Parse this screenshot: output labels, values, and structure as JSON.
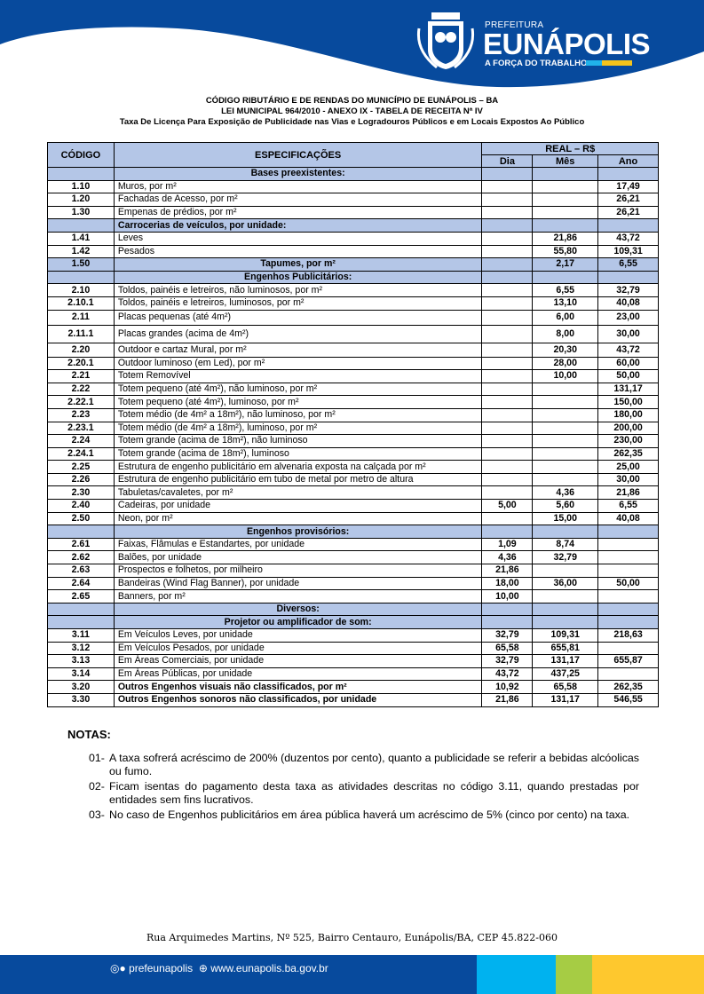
{
  "header": {
    "pref": "PREFEITURA",
    "city": "EUNÁPOLIS",
    "slogan": "A FORÇA DO TRABALHO",
    "colors": {
      "blue": "#074a9d",
      "cyan": "#00b2ef",
      "green": "#a6cc44",
      "yellow": "#fec82e"
    }
  },
  "titles": [
    "CÓDIGO RIBUTÁRIO E DE RENDAS DO MUNICÍPIO DE EUNÁPOLIS – BA",
    "LEI MUNICIPAL 964/2010 - ANEXO IX - TABELA DE RECEITA Nª IV",
    "Taxa De Licença Para Exposição de Publicidade nas Vias e Logradouros Públicos e em Locais Expostos Ao Público"
  ],
  "table": {
    "headers": {
      "code": "CÓDIGO",
      "spec": "ESPECIFICAÇÕES",
      "real": "REAL – R$",
      "dia": "Dia",
      "mes": "Mês",
      "ano": "Ano"
    },
    "rows": [
      {
        "t": "sec",
        "spec": "Bases preexistentes:"
      },
      {
        "code": "1.10",
        "spec": "Muros, por m²",
        "ano": "17,49"
      },
      {
        "code": "1.20",
        "spec": "Fachadas de Acesso, por m²",
        "ano": "26,21"
      },
      {
        "code": "1.30",
        "spec": "Empenas de prédios, por m²",
        "ano": "26,21"
      },
      {
        "t": "secl",
        "spec": "Carrocerias de veículos, por unidade:"
      },
      {
        "code": "1.41",
        "spec": "Leves",
        "mes": "21,86",
        "ano": "43,72"
      },
      {
        "code": "1.42",
        "spec": "Pesados",
        "mes": "55,80",
        "ano": "109,31"
      },
      {
        "t": "sec",
        "code": "1.50",
        "spec": "Tapumes, por m²",
        "mes": "2,17",
        "ano": "6,55"
      },
      {
        "t": "sec",
        "spec": "Engenhos Publicitários:"
      },
      {
        "code": "2.10",
        "spec": "Toldos, painéis e letreiros, não luminosos, por m²",
        "mes": "6,55",
        "ano": "32,79"
      },
      {
        "code": "2.10.1",
        "spec": "Toldos, painéis e letreiros, luminosos, por m²",
        "mes": "13,10",
        "ano": "40,08"
      },
      {
        "code": "2.11",
        "spec": "Placas pequenas (até 4m²)",
        "mes": "6,00",
        "ano": "23,00",
        "h": 17
      },
      {
        "code": "2.11.1",
        "spec": "Placas grandes (acima de 4m²)",
        "mes": "8,00",
        "ano": "30,00",
        "h": 20
      },
      {
        "code": "2.20",
        "spec": "Outdoor e cartaz Mural, por m²",
        "mes": "20,30",
        "ano": "43,72",
        "h": 16
      },
      {
        "code": "2.20.1",
        "spec": "Outdoor luminoso (em Led), por m²",
        "mes": "28,00",
        "ano": "60,00"
      },
      {
        "code": "2.21",
        "spec": "Totem Removível",
        "mes": "10,00",
        "ano": "50,00"
      },
      {
        "code": "2.22",
        "spec": "Totem pequeno (até 4m²), não luminoso, por m²",
        "ano": "131,17"
      },
      {
        "code": "2.22.1",
        "spec": "Totem pequeno (até 4m²), luminoso, por m²",
        "ano": "150,00"
      },
      {
        "code": "2.23",
        "spec": "Totem médio (de 4m² a 18m²), não luminoso, por m²",
        "ano": "180,00"
      },
      {
        "code": "2.23.1",
        "spec": "Totem médio (de 4m² a 18m²), luminoso, por m²",
        "ano": "200,00"
      },
      {
        "code": "2.24",
        "spec": "Totem grande (acima de 18m²), não luminoso",
        "ano": "230,00"
      },
      {
        "code": "2.24.1",
        "spec": "Totem grande (acima de 18m²), luminoso",
        "ano": "262,35"
      },
      {
        "code": "2.25",
        "spec": "Estrutura de engenho publicitário em alvenaria exposta na calçada por m²",
        "ano": "25,00"
      },
      {
        "code": "2.26",
        "spec": "Estrutura de engenho publicitário em tubo de metal por metro de altura",
        "ano": "30,00"
      },
      {
        "code": "2.30",
        "spec": "Tabuletas/cavaletes, por m²",
        "mes": "4,36",
        "ano": "21,86"
      },
      {
        "code": "2.40",
        "spec": "Cadeiras, por unidade",
        "dia": "5,00",
        "mes": "5,60",
        "ano": "6,55"
      },
      {
        "code": "2.50",
        "spec": "Neon, por m²",
        "mes": "15,00",
        "ano": "40,08"
      },
      {
        "t": "sec",
        "spec": "Engenhos provisórios:"
      },
      {
        "code": "2.61",
        "spec": "Faixas, Flâmulas e Estandartes, por unidade",
        "dia": "1,09",
        "mes": "8,74"
      },
      {
        "code": "2.62",
        "spec": "Balões, por unidade",
        "dia": "4,36",
        "mes": "32,79"
      },
      {
        "code": "2.63",
        "spec": "Prospectos e folhetos, por milheiro",
        "dia": "21,86"
      },
      {
        "code": "2.64",
        "spec": "Bandeiras (Wind Flag Banner), por unidade",
        "dia": "18,00",
        "mes": "36,00",
        "ano": "50,00"
      },
      {
        "code": "2.65",
        "spec": "Banners, por m²",
        "dia": "10,00"
      },
      {
        "t": "sec",
        "spec": "Diversos:"
      },
      {
        "t": "sec",
        "spec": "Projetor ou amplificador de som:"
      },
      {
        "code": "3.11",
        "spec": "Em Veículos Leves, por unidade",
        "dia": "32,79",
        "mes": "109,31",
        "ano": "218,63"
      },
      {
        "code": "3.12",
        "spec": "Em Veículos Pesados, por unidade",
        "dia": "65,58",
        "mes": "655,81"
      },
      {
        "code": "3.13",
        "spec": "Em Áreas Comerciais, por unidade",
        "dia": "32,79",
        "mes": "131,17",
        "ano": "655,87"
      },
      {
        "code": "3.14",
        "spec": "Em Áreas Públicas, por unidade",
        "dia": "43,72",
        "mes": "437,25"
      },
      {
        "t": "b",
        "code": "3.20",
        "spec": "Outros Engenhos visuais não classificados, por m²",
        "dia": "10,92",
        "mes": "65,58",
        "ano": "262,35"
      },
      {
        "t": "b",
        "code": "3.30",
        "spec": "Outros Engenhos sonoros não classificados, por unidade",
        "dia": "21,86",
        "mes": "131,17",
        "ano": "546,55"
      }
    ]
  },
  "notes": {
    "title": "NOTAS:",
    "items": [
      {
        "num": "01-",
        "text": "A taxa sofrerá acréscimo de 200% (duzentos por cento), quanto a publicidade se referir a bebidas alcóolicas ou fumo."
      },
      {
        "num": "02-",
        "text": "Ficam isentas do pagamento desta taxa as atividades descritas no código 3.11, quando prestadas por entidades sem fins lucrativos."
      },
      {
        "num": "03-",
        "text": "No caso de Engenhos publicitários em área pública haverá um acréscimo de 5% (cinco por cento) na taxa."
      }
    ]
  },
  "footer": {
    "address": "Rua Arquimedes Martins, Nº 525, Bairro Centauro, Eunápolis/BA, CEP 45.822-060",
    "social": "prefeunapolis",
    "website": "www.eunapolis.ba.gov.br"
  }
}
